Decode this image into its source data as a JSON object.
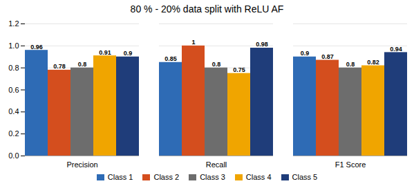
{
  "chart_data": {
    "type": "bar",
    "title": "80 % - 20% data split with ReLU AF",
    "categories": [
      "Precision",
      "Recall",
      "F1 Score"
    ],
    "series": [
      {
        "name": "Class 1",
        "color": "#2E6BB5",
        "values": [
          0.96,
          0.85,
          0.9
        ]
      },
      {
        "name": "Class 2",
        "color": "#D44E1E",
        "values": [
          0.78,
          1.0,
          0.87
        ]
      },
      {
        "name": "Class 3",
        "color": "#6D6D6D",
        "values": [
          0.8,
          0.8,
          0.8
        ]
      },
      {
        "name": "Class 4",
        "color": "#F0A500",
        "values": [
          0.91,
          0.75,
          0.82
        ]
      },
      {
        "name": "Class 5",
        "color": "#1F3D7A",
        "values": [
          0.9,
          0.98,
          0.94
        ]
      }
    ],
    "ylim": [
      0,
      1.2
    ],
    "yticks": [
      {
        "value": 0,
        "label": "0.0"
      },
      0.2,
      0.4,
      0.6,
      0.8,
      {
        "value": 1.0,
        "label": "1.0"
      },
      1.2
    ],
    "grid": true,
    "legend": "bottom",
    "data_labels": true
  }
}
